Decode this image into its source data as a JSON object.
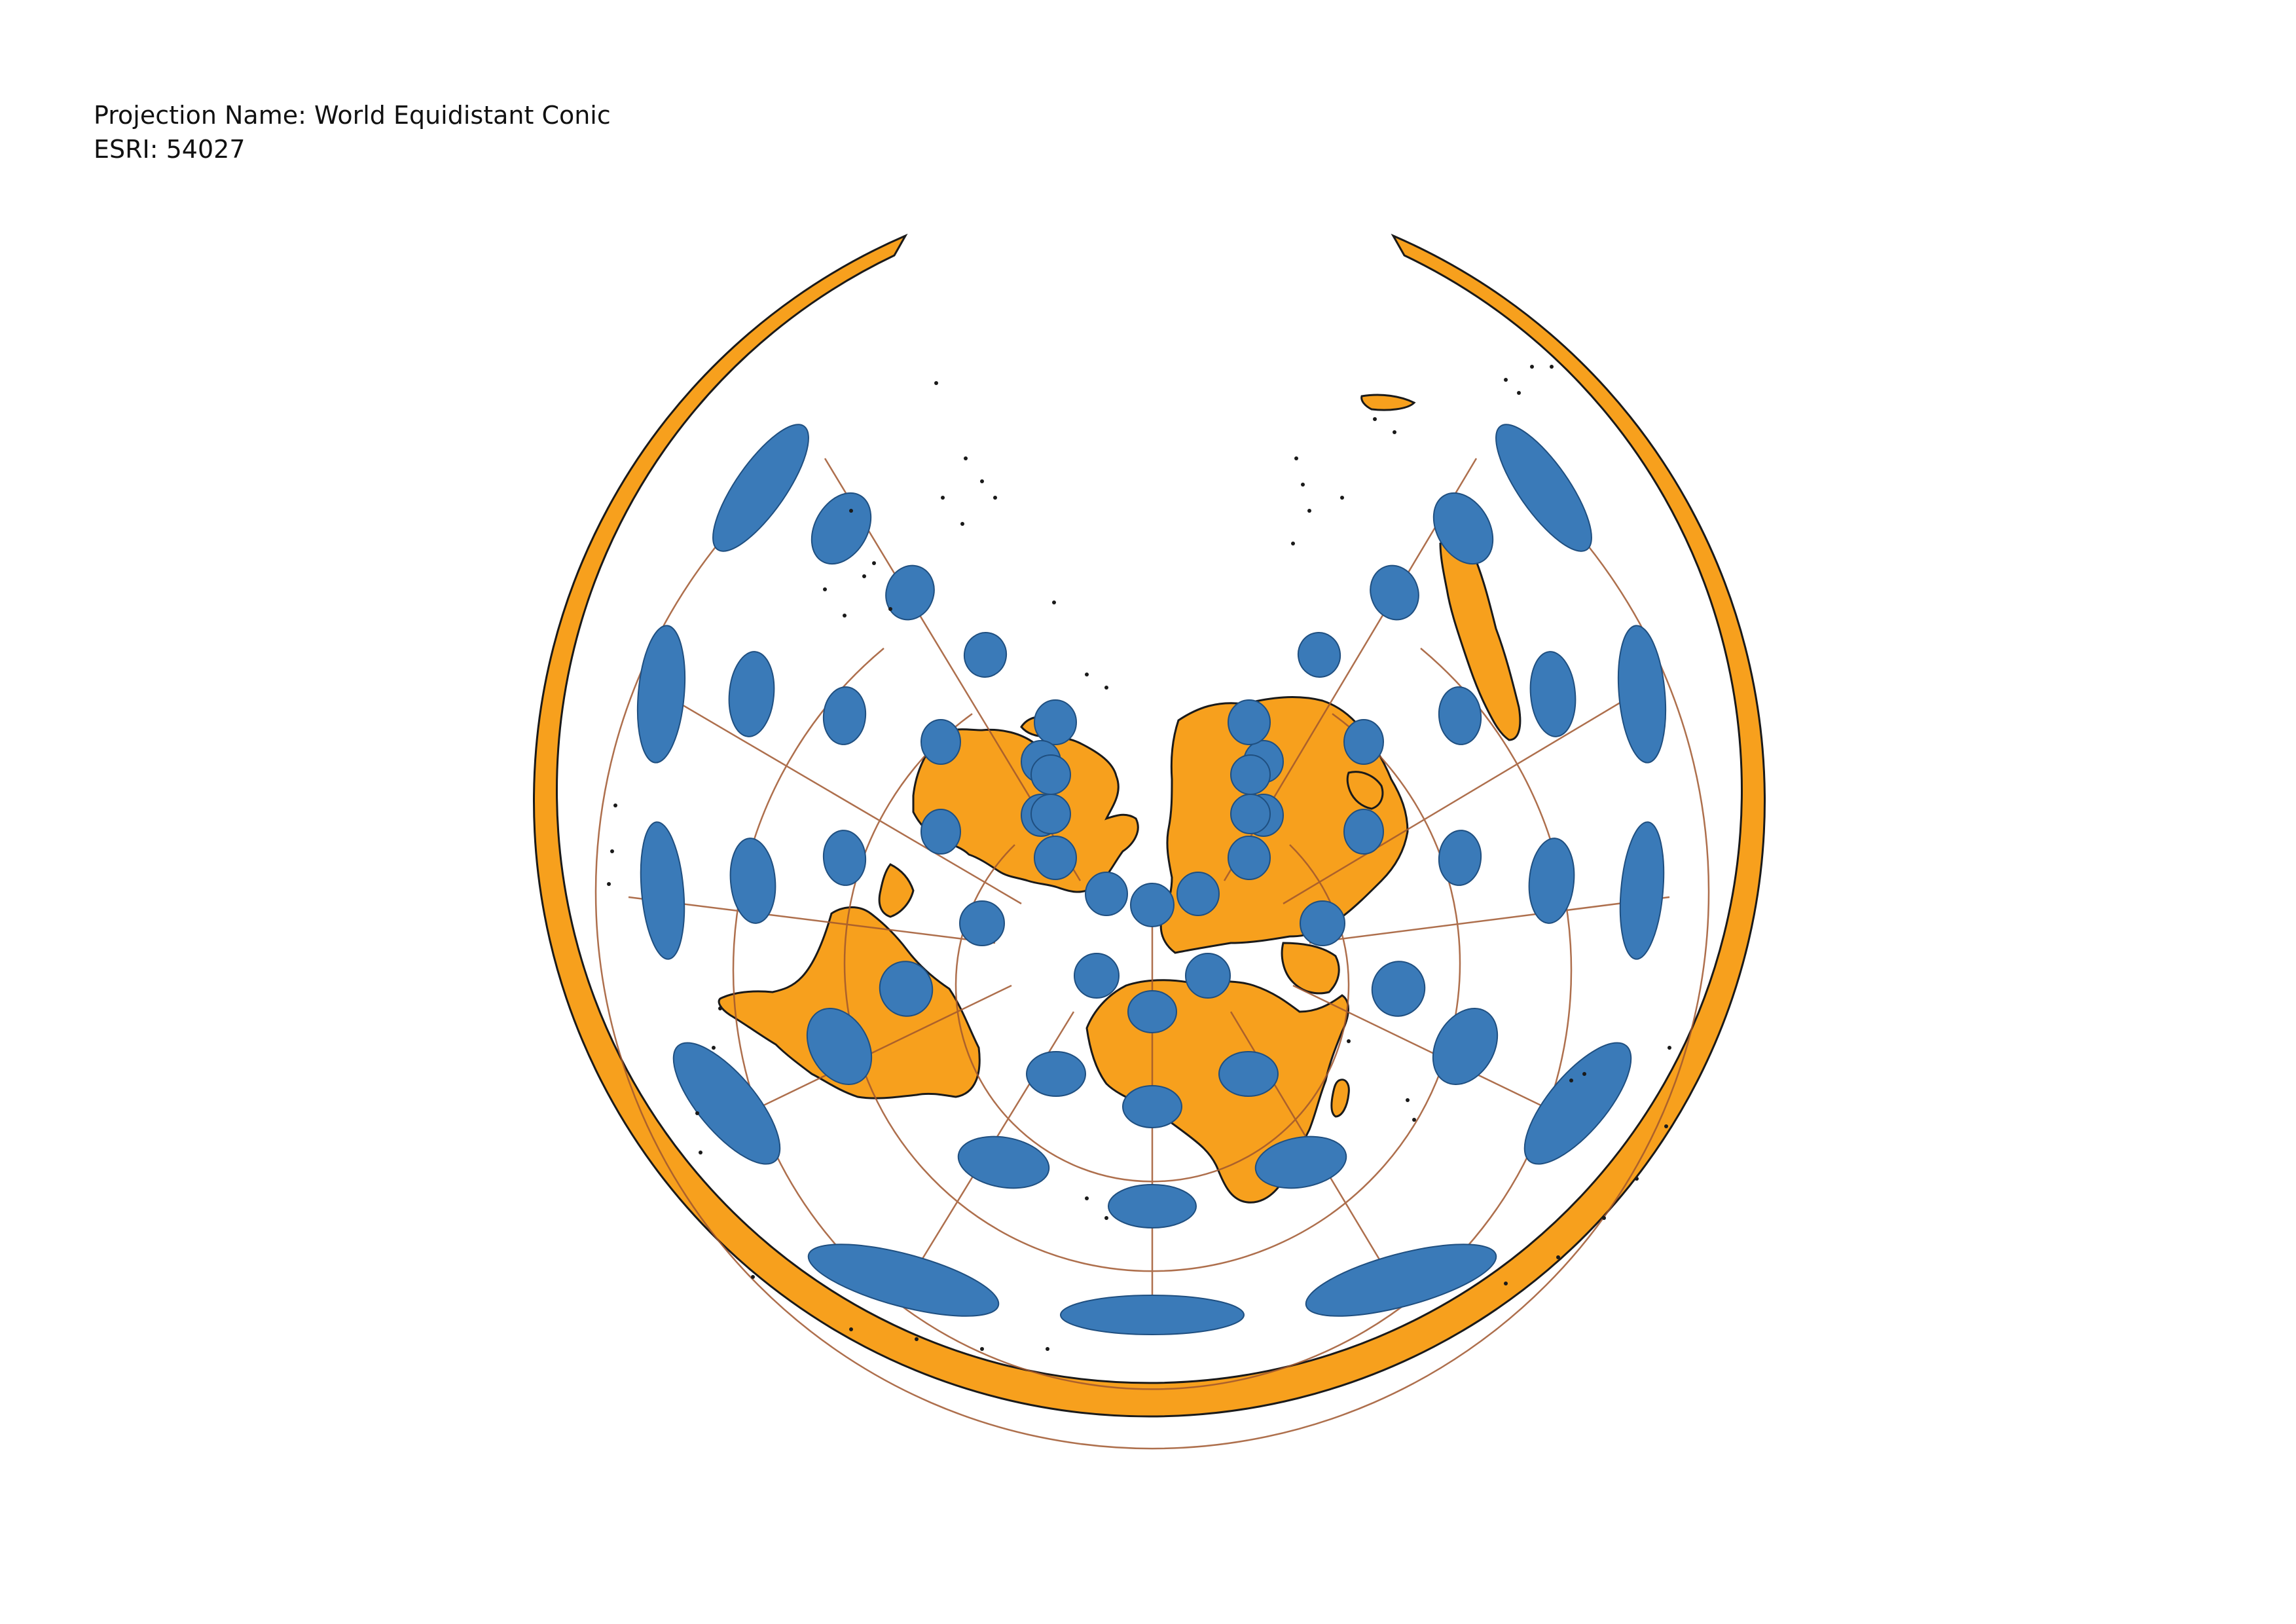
{
  "info": {
    "projection_line": "Projection Name: World Equidistant Conic",
    "code_line": "ESRI: 54027"
  },
  "colors": {
    "land": "#f7a01d",
    "ellipse": "#3a7ab8",
    "graticule": "#a0572e",
    "outline": "#1a1a1a",
    "background": "#ffffff"
  },
  "map": {
    "projection": "World Equidistant Conic",
    "tissot_indicatrix": true,
    "graticule": true
  }
}
